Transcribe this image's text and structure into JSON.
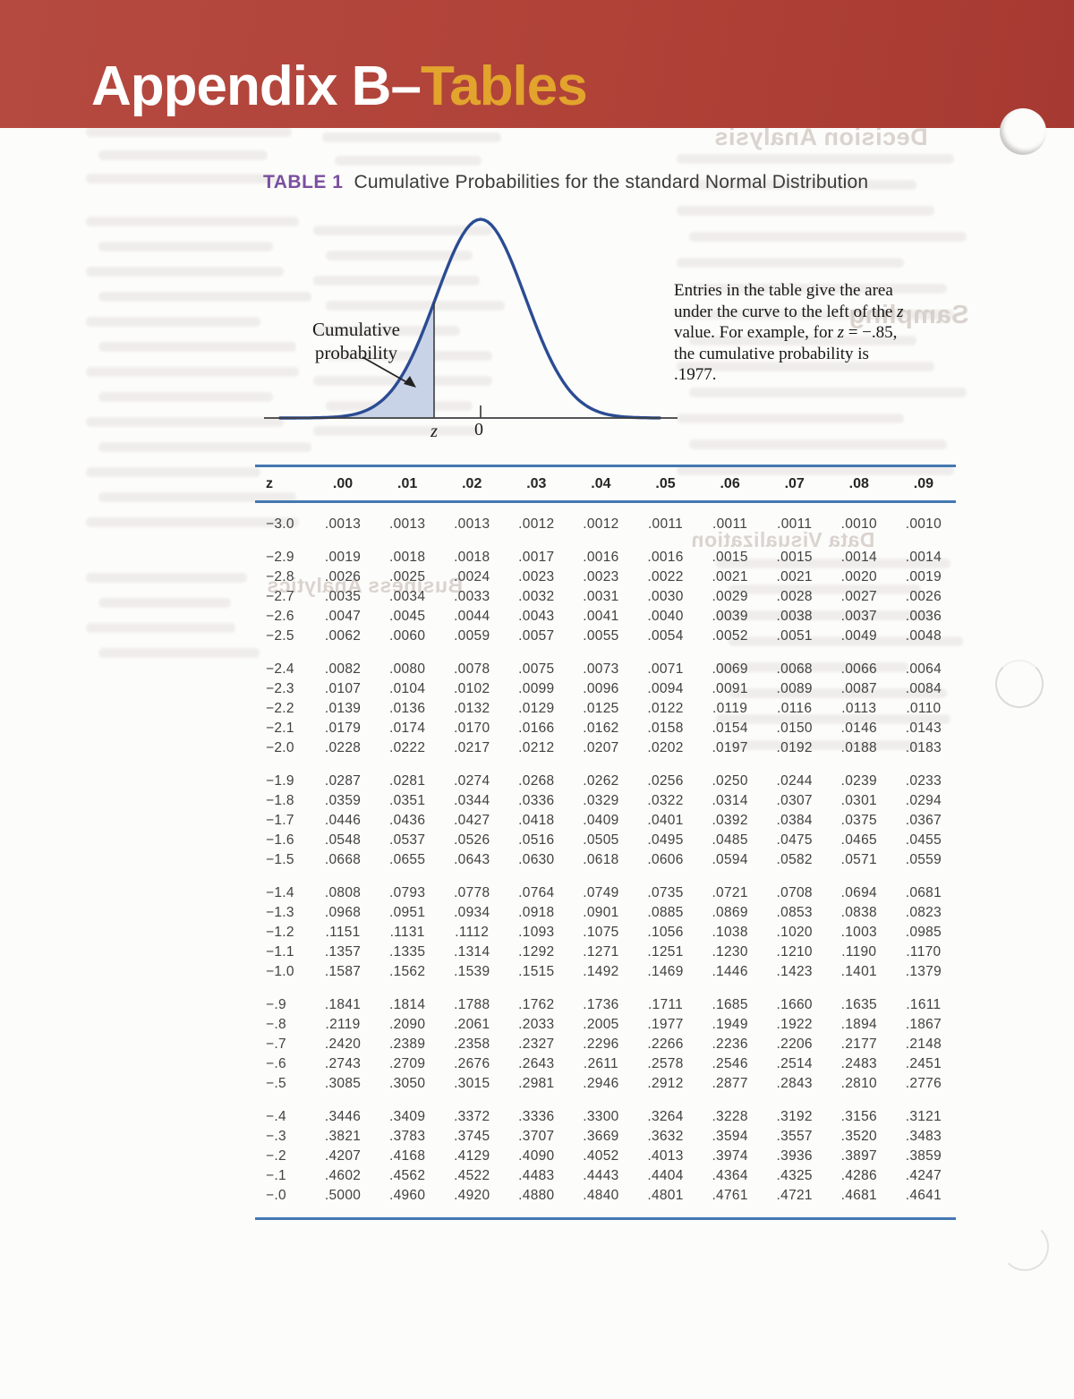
{
  "banner": {
    "title_white": "Appendix B–",
    "title_gold": "Tables"
  },
  "table_title": {
    "label": "TABLE 1",
    "text": "Cumulative Probabilities for the standard Normal Distribution"
  },
  "figure": {
    "shade_label_line1": "Cumulative",
    "shade_label_line2": "probability",
    "axis_label_z": "z",
    "axis_label_zero": "0",
    "note_p1": "Entries in the table give the area under the curve to the left of the ",
    "note_z1": "z",
    "note_p2": " value. For example, for ",
    "note_z2": "z",
    "note_p3": " = −.85, the cumulative probability is .1977."
  },
  "bleed_headings": [
    {
      "text": "Decision Analysis"
    },
    {
      "text": "Sampling"
    },
    {
      "text": "Data Visualization"
    },
    {
      "text": "Business Analytics"
    }
  ],
  "table": {
    "columns": [
      "z",
      ".00",
      ".01",
      ".02",
      ".03",
      ".04",
      ".05",
      ".06",
      ".07",
      ".08",
      ".09"
    ],
    "row_groups": [
      [
        {
          "z": "−3.0",
          "values": [
            ".0013",
            ".0013",
            ".0013",
            ".0012",
            ".0012",
            ".0011",
            ".0011",
            ".0011",
            ".0010",
            ".0010"
          ]
        }
      ],
      [
        {
          "z": "−2.9",
          "values": [
            ".0019",
            ".0018",
            ".0018",
            ".0017",
            ".0016",
            ".0016",
            ".0015",
            ".0015",
            ".0014",
            ".0014"
          ]
        },
        {
          "z": "−2.8",
          "values": [
            ".0026",
            ".0025",
            ".0024",
            ".0023",
            ".0023",
            ".0022",
            ".0021",
            ".0021",
            ".0020",
            ".0019"
          ]
        },
        {
          "z": "−2.7",
          "values": [
            ".0035",
            ".0034",
            ".0033",
            ".0032",
            ".0031",
            ".0030",
            ".0029",
            ".0028",
            ".0027",
            ".0026"
          ]
        },
        {
          "z": "−2.6",
          "values": [
            ".0047",
            ".0045",
            ".0044",
            ".0043",
            ".0041",
            ".0040",
            ".0039",
            ".0038",
            ".0037",
            ".0036"
          ]
        },
        {
          "z": "−2.5",
          "values": [
            ".0062",
            ".0060",
            ".0059",
            ".0057",
            ".0055",
            ".0054",
            ".0052",
            ".0051",
            ".0049",
            ".0048"
          ]
        }
      ],
      [
        {
          "z": "−2.4",
          "values": [
            ".0082",
            ".0080",
            ".0078",
            ".0075",
            ".0073",
            ".0071",
            ".0069",
            ".0068",
            ".0066",
            ".0064"
          ]
        },
        {
          "z": "−2.3",
          "values": [
            ".0107",
            ".0104",
            ".0102",
            ".0099",
            ".0096",
            ".0094",
            ".0091",
            ".0089",
            ".0087",
            ".0084"
          ]
        },
        {
          "z": "−2.2",
          "values": [
            ".0139",
            ".0136",
            ".0132",
            ".0129",
            ".0125",
            ".0122",
            ".0119",
            ".0116",
            ".0113",
            ".0110"
          ]
        },
        {
          "z": "−2.1",
          "values": [
            ".0179",
            ".0174",
            ".0170",
            ".0166",
            ".0162",
            ".0158",
            ".0154",
            ".0150",
            ".0146",
            ".0143"
          ]
        },
        {
          "z": "−2.0",
          "values": [
            ".0228",
            ".0222",
            ".0217",
            ".0212",
            ".0207",
            ".0202",
            ".0197",
            ".0192",
            ".0188",
            ".0183"
          ]
        }
      ],
      [
        {
          "z": "−1.9",
          "values": [
            ".0287",
            ".0281",
            ".0274",
            ".0268",
            ".0262",
            ".0256",
            ".0250",
            ".0244",
            ".0239",
            ".0233"
          ]
        },
        {
          "z": "−1.8",
          "values": [
            ".0359",
            ".0351",
            ".0344",
            ".0336",
            ".0329",
            ".0322",
            ".0314",
            ".0307",
            ".0301",
            ".0294"
          ]
        },
        {
          "z": "−1.7",
          "values": [
            ".0446",
            ".0436",
            ".0427",
            ".0418",
            ".0409",
            ".0401",
            ".0392",
            ".0384",
            ".0375",
            ".0367"
          ]
        },
        {
          "z": "−1.6",
          "values": [
            ".0548",
            ".0537",
            ".0526",
            ".0516",
            ".0505",
            ".0495",
            ".0485",
            ".0475",
            ".0465",
            ".0455"
          ]
        },
        {
          "z": "−1.5",
          "values": [
            ".0668",
            ".0655",
            ".0643",
            ".0630",
            ".0618",
            ".0606",
            ".0594",
            ".0582",
            ".0571",
            ".0559"
          ]
        }
      ],
      [
        {
          "z": "−1.4",
          "values": [
            ".0808",
            ".0793",
            ".0778",
            ".0764",
            ".0749",
            ".0735",
            ".0721",
            ".0708",
            ".0694",
            ".0681"
          ]
        },
        {
          "z": "−1.3",
          "values": [
            ".0968",
            ".0951",
            ".0934",
            ".0918",
            ".0901",
            ".0885",
            ".0869",
            ".0853",
            ".0838",
            ".0823"
          ]
        },
        {
          "z": "−1.2",
          "values": [
            ".1151",
            ".1131",
            ".1112",
            ".1093",
            ".1075",
            ".1056",
            ".1038",
            ".1020",
            ".1003",
            ".0985"
          ]
        },
        {
          "z": "−1.1",
          "values": [
            ".1357",
            ".1335",
            ".1314",
            ".1292",
            ".1271",
            ".1251",
            ".1230",
            ".1210",
            ".1190",
            ".1170"
          ]
        },
        {
          "z": "−1.0",
          "values": [
            ".1587",
            ".1562",
            ".1539",
            ".1515",
            ".1492",
            ".1469",
            ".1446",
            ".1423",
            ".1401",
            ".1379"
          ]
        }
      ],
      [
        {
          "z": "−.9",
          "values": [
            ".1841",
            ".1814",
            ".1788",
            ".1762",
            ".1736",
            ".1711",
            ".1685",
            ".1660",
            ".1635",
            ".1611"
          ]
        },
        {
          "z": "−.8",
          "values": [
            ".2119",
            ".2090",
            ".2061",
            ".2033",
            ".2005",
            ".1977",
            ".1949",
            ".1922",
            ".1894",
            ".1867"
          ]
        },
        {
          "z": "−.7",
          "values": [
            ".2420",
            ".2389",
            ".2358",
            ".2327",
            ".2296",
            ".2266",
            ".2236",
            ".2206",
            ".2177",
            ".2148"
          ]
        },
        {
          "z": "−.6",
          "values": [
            ".2743",
            ".2709",
            ".2676",
            ".2643",
            ".2611",
            ".2578",
            ".2546",
            ".2514",
            ".2483",
            ".2451"
          ]
        },
        {
          "z": "−.5",
          "values": [
            ".3085",
            ".3050",
            ".3015",
            ".2981",
            ".2946",
            ".2912",
            ".2877",
            ".2843",
            ".2810",
            ".2776"
          ]
        }
      ],
      [
        {
          "z": "−.4",
          "values": [
            ".3446",
            ".3409",
            ".3372",
            ".3336",
            ".3300",
            ".3264",
            ".3228",
            ".3192",
            ".3156",
            ".3121"
          ]
        },
        {
          "z": "−.3",
          "values": [
            ".3821",
            ".3783",
            ".3745",
            ".3707",
            ".3669",
            ".3632",
            ".3594",
            ".3557",
            ".3520",
            ".3483"
          ]
        },
        {
          "z": "−.2",
          "values": [
            ".4207",
            ".4168",
            ".4129",
            ".4090",
            ".4052",
            ".4013",
            ".3974",
            ".3936",
            ".3897",
            ".3859"
          ]
        },
        {
          "z": "−.1",
          "values": [
            ".4602",
            ".4562",
            ".4522",
            ".4483",
            ".4443",
            ".4404",
            ".4364",
            ".4325",
            ".4286",
            ".4247"
          ]
        },
        {
          "z": "−.0",
          "values": [
            ".5000",
            ".4960",
            ".4920",
            ".4880",
            ".4840",
            ".4801",
            ".4761",
            ".4721",
            ".4681",
            ".4641"
          ]
        }
      ]
    ]
  },
  "colors": {
    "banner_red": "#b04238",
    "title_gold": "#e2a42c",
    "table_label_purple": "#7a4f9e",
    "rule_blue": "#4478b1",
    "curve_blue": "#2b4c93",
    "shade_blue": "#c8d3e7"
  }
}
